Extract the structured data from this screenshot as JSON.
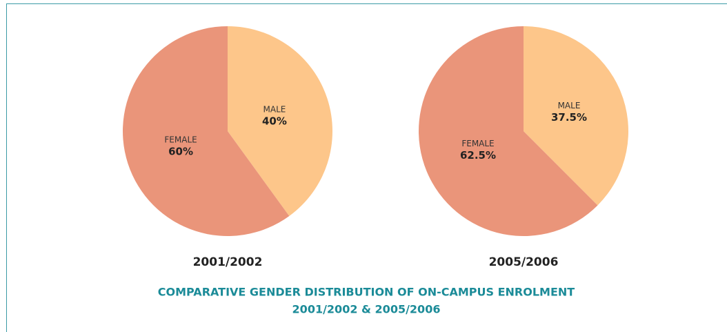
{
  "chart_data": [
    {
      "type": "pie",
      "title": "2001/2002",
      "categories": [
        "MALE",
        "FEMALE"
      ],
      "values": [
        40,
        60
      ],
      "value_labels": [
        "40%",
        "60%"
      ],
      "colors": [
        "#fdc68a",
        "#ea957a"
      ]
    },
    {
      "type": "pie",
      "title": "2005/2006",
      "categories": [
        "MALE",
        "FEMALE"
      ],
      "values": [
        37.5,
        62.5
      ],
      "value_labels": [
        "37.5%",
        "62.5%"
      ],
      "colors": [
        "#fdc68a",
        "#ea957a"
      ]
    }
  ],
  "caption": {
    "line1": "COMPARATIVE GENDER DISTRIBUTION OF ON-CAMPUS ENROLMENT",
    "line2": "2001/2002 & 2005/2006"
  }
}
